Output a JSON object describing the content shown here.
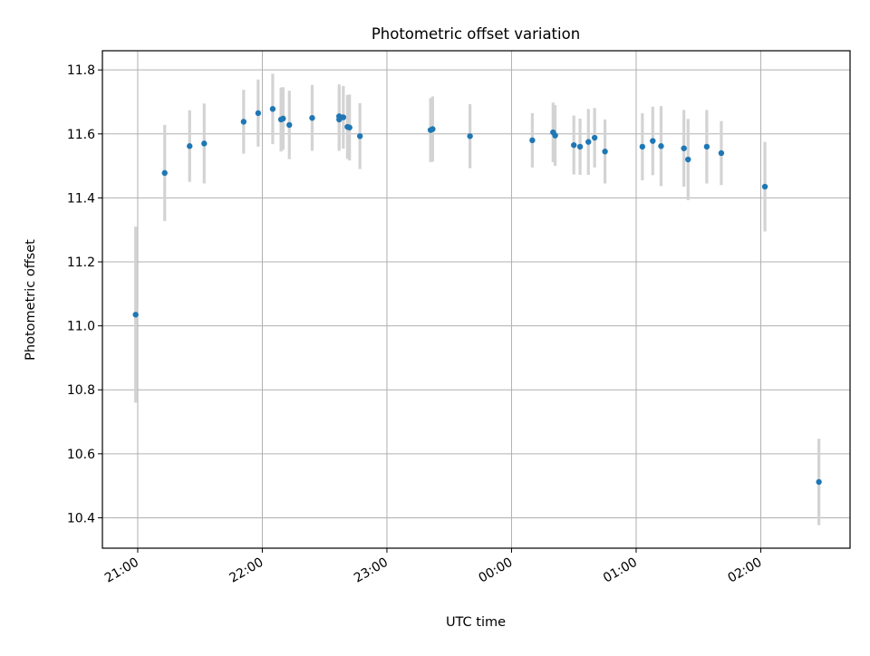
{
  "chart_data": {
    "type": "scatter",
    "title": "Photometric offset variation",
    "xlabel": "UTC time",
    "ylabel": "Photometric offset",
    "x_tick_labels": [
      "21:00",
      "22:00",
      "23:00",
      "00:00",
      "01:00",
      "02:00"
    ],
    "y_tick_labels": [
      "10.4",
      "10.6",
      "10.8",
      "11.0",
      "11.2",
      "11.4",
      "11.6",
      "11.8"
    ],
    "y_ticks": [
      10.4,
      10.6,
      10.8,
      11.0,
      11.2,
      11.4,
      11.6,
      11.8
    ],
    "xlim": [
      "20:43",
      "02:43"
    ],
    "ylim": [
      10.305,
      11.86
    ],
    "grid": true,
    "marker_color": "#1f77b4",
    "errorbar_color": "#d3d3d3",
    "points": [
      {
        "x": "20:59",
        "y": 11.035,
        "err": 0.275
      },
      {
        "x": "21:13",
        "y": 11.478,
        "err": 0.15
      },
      {
        "x": "21:25",
        "y": 11.562,
        "err": 0.112
      },
      {
        "x": "21:32",
        "y": 11.57,
        "err": 0.125
      },
      {
        "x": "21:51",
        "y": 11.638,
        "err": 0.1
      },
      {
        "x": "21:58",
        "y": 11.665,
        "err": 0.105
      },
      {
        "x": "22:05",
        "y": 11.678,
        "err": 0.11
      },
      {
        "x": "22:09",
        "y": 11.645,
        "err": 0.1
      },
      {
        "x": "22:10",
        "y": 11.648,
        "err": 0.098
      },
      {
        "x": "22:13",
        "y": 11.628,
        "err": 0.107
      },
      {
        "x": "22:24",
        "y": 11.65,
        "err": 0.103
      },
      {
        "x": "22:37",
        "y": 11.655,
        "err": 0.1
      },
      {
        "x": "22:37",
        "y": 11.645,
        "err": 0.098
      },
      {
        "x": "22:39",
        "y": 11.652,
        "err": 0.098
      },
      {
        "x": "22:41",
        "y": 11.622,
        "err": 0.1
      },
      {
        "x": "22:42",
        "y": 11.62,
        "err": 0.103
      },
      {
        "x": "22:47",
        "y": 11.593,
        "err": 0.103
      },
      {
        "x": "23:21",
        "y": 11.612,
        "err": 0.1
      },
      {
        "x": "23:22",
        "y": 11.615,
        "err": 0.102
      },
      {
        "x": "23:40",
        "y": 11.593,
        "err": 0.1
      },
      {
        "x": "00:10",
        "y": 11.58,
        "err": 0.085
      },
      {
        "x": "00:20",
        "y": 11.605,
        "err": 0.093
      },
      {
        "x": "00:21",
        "y": 11.595,
        "err": 0.095
      },
      {
        "x": "00:30",
        "y": 11.565,
        "err": 0.092
      },
      {
        "x": "00:33",
        "y": 11.56,
        "err": 0.088
      },
      {
        "x": "00:37",
        "y": 11.575,
        "err": 0.103
      },
      {
        "x": "00:40",
        "y": 11.588,
        "err": 0.093
      },
      {
        "x": "00:45",
        "y": 11.545,
        "err": 0.1
      },
      {
        "x": "01:03",
        "y": 11.56,
        "err": 0.105
      },
      {
        "x": "01:08",
        "y": 11.578,
        "err": 0.107
      },
      {
        "x": "01:12",
        "y": 11.562,
        "err": 0.125
      },
      {
        "x": "01:23",
        "y": 11.555,
        "err": 0.12
      },
      {
        "x": "01:25",
        "y": 11.52,
        "err": 0.127
      },
      {
        "x": "01:34",
        "y": 11.56,
        "err": 0.115
      },
      {
        "x": "01:41",
        "y": 11.54,
        "err": 0.1
      },
      {
        "x": "02:02",
        "y": 11.435,
        "err": 0.14
      },
      {
        "x": "02:28",
        "y": 10.512,
        "err": 0.135
      }
    ]
  }
}
